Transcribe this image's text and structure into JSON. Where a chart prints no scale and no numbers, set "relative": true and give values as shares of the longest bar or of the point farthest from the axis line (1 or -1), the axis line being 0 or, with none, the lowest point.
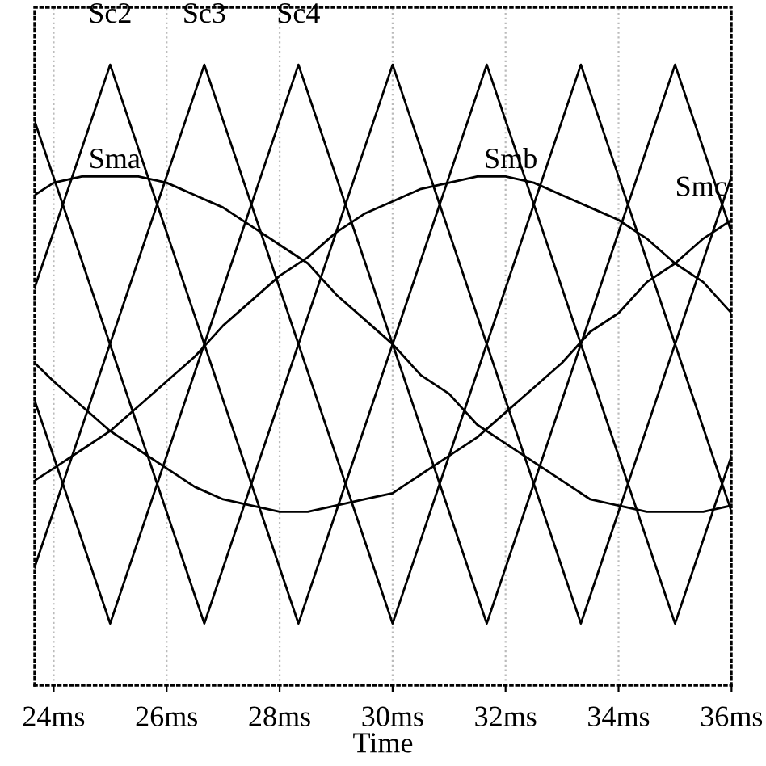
{
  "chart_data": {
    "type": "line",
    "relative": true,
    "xlabel": "Time",
    "xlim": [
      23.66,
      36.0
    ],
    "xticks": [
      {
        "value": 24,
        "label": "24ms"
      },
      {
        "value": 26,
        "label": "26ms"
      },
      {
        "value": 28,
        "label": "28ms"
      },
      {
        "value": 30,
        "label": "30ms"
      },
      {
        "value": 32,
        "label": "32ms"
      },
      {
        "value": 34,
        "label": "34ms"
      },
      {
        "value": 36,
        "label": "36ms"
      }
    ],
    "grid": "x",
    "line_style": "solid",
    "series": [
      {
        "color": "#000000",
        "x": [
          23.66,
          26.667,
          30.0,
          33.333,
          36.0
        ],
        "values": [
          0.91,
          0.1,
          1,
          0.1,
          0.82
        ]
      },
      {
        "name": "Sc2",
        "color": "#000000",
        "x": [
          23.66,
          25.0,
          28.333,
          31.667,
          35.0,
          36.0
        ],
        "values": [
          0.64,
          1,
          0.1,
          1,
          0.1,
          0.37
        ]
      },
      {
        "name": "Sc3",
        "color": "#000000",
        "x": [
          23.66,
          26.667,
          30.0,
          33.333,
          36.0
        ],
        "values": [
          0.19,
          1,
          0.1,
          1,
          0.28
        ]
      },
      {
        "name": "Sc4",
        "color": "#000000",
        "x": [
          23.66,
          25.0,
          28.333,
          31.667,
          35.0,
          36.0
        ],
        "values": [
          0.46,
          0.1,
          1,
          0.1,
          1,
          0.73
        ]
      },
      {
        "name": "Sma",
        "color": "#000000",
        "x": [
          23.66,
          24.0,
          24.5,
          25.0,
          25.5,
          26.0,
          26.5,
          27.0,
          27.5,
          28.0,
          28.5,
          29.0,
          29.5,
          30.0,
          30.5,
          31.0,
          31.5,
          32.0,
          32.5,
          33.0,
          33.5,
          34.0,
          34.5,
          35.0,
          35.5,
          36.0
        ],
        "values": [
          0.79,
          0.81,
          0.82,
          0.82,
          0.82,
          0.81,
          0.79,
          0.77,
          0.74,
          0.71,
          0.68,
          0.63,
          0.59,
          0.55,
          0.5,
          0.47,
          0.42,
          0.39,
          0.36,
          0.33,
          0.3,
          0.29,
          0.28,
          0.28,
          0.28,
          0.29
        ]
      },
      {
        "name": "Smb",
        "color": "#000000",
        "x": [
          23.66,
          24.0,
          24.5,
          25.0,
          25.5,
          26.0,
          26.5,
          27.0,
          27.5,
          28.0,
          28.5,
          29.0,
          29.5,
          30.0,
          30.5,
          31.0,
          31.5,
          32.0,
          32.5,
          33.0,
          33.5,
          34.0,
          34.5,
          35.0,
          35.5,
          36.0
        ],
        "values": [
          0.33,
          0.35,
          0.38,
          0.41,
          0.45,
          0.49,
          0.53,
          0.58,
          0.62,
          0.66,
          0.69,
          0.73,
          0.76,
          0.78,
          0.8,
          0.81,
          0.82,
          0.82,
          0.81,
          0.79,
          0.77,
          0.75,
          0.72,
          0.68,
          0.65,
          0.6
        ]
      },
      {
        "name": "Smc",
        "color": "#000000",
        "x": [
          23.66,
          24.0,
          24.5,
          25.0,
          25.5,
          26.0,
          26.5,
          27.0,
          27.5,
          28.0,
          28.5,
          29.0,
          29.5,
          30.0,
          30.5,
          31.0,
          31.5,
          32.0,
          32.5,
          33.0,
          33.5,
          34.0,
          34.5,
          35.0,
          35.5,
          36.0
        ],
        "values": [
          0.52,
          0.49,
          0.45,
          0.41,
          0.38,
          0.35,
          0.32,
          0.3,
          0.29,
          0.28,
          0.28,
          0.29,
          0.3,
          0.31,
          0.34,
          0.37,
          0.4,
          0.44,
          0.48,
          0.52,
          0.57,
          0.6,
          0.65,
          0.68,
          0.72,
          0.75
        ]
      }
    ]
  }
}
